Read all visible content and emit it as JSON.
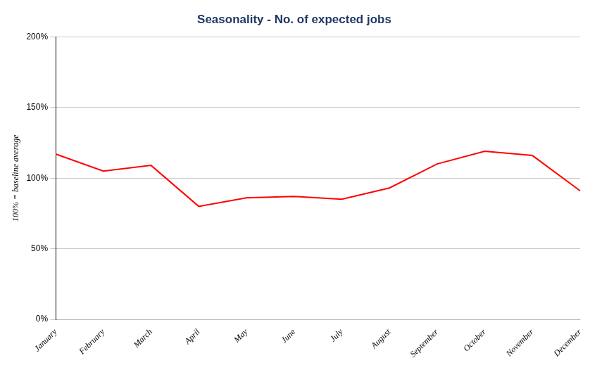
{
  "chart_data": {
    "type": "line",
    "title": "Seasonality - No. of expected jobs",
    "ylabel": "100% = baseline average",
    "categories": [
      "January",
      "February",
      "March",
      "April",
      "May",
      "June",
      "July",
      "August",
      "September",
      "October",
      "November",
      "December"
    ],
    "values": [
      117,
      105,
      109,
      80,
      86,
      87,
      85,
      93,
      110,
      119,
      116,
      91
    ],
    "color": "#FF0000",
    "ylim": [
      0,
      200
    ],
    "yticks": [
      {
        "value": 0,
        "label": "0%"
      },
      {
        "value": 50,
        "label": "50%"
      },
      {
        "value": 100,
        "label": "100%"
      },
      {
        "value": 150,
        "label": "150%"
      },
      {
        "value": 200,
        "label": "200%"
      }
    ],
    "grid": true
  }
}
